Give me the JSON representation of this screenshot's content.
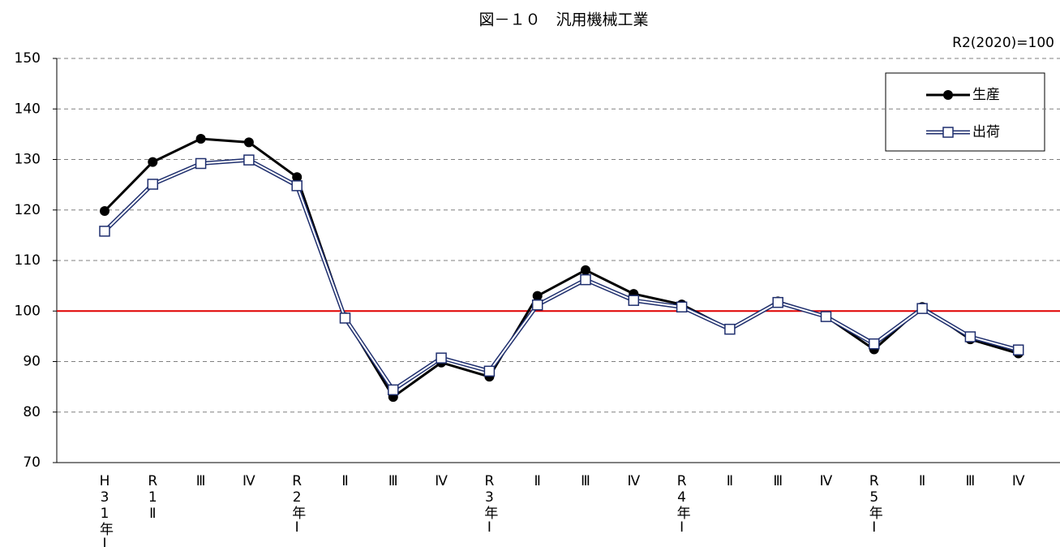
{
  "chart_data": {
    "type": "line",
    "title": "図－１０　汎用機械工業",
    "subtitle": "R2(2020)=100",
    "categories": [
      "H31年Ⅰ",
      "R1Ⅱ",
      "Ⅲ",
      "Ⅳ",
      "R2年Ⅰ",
      "Ⅱ",
      "Ⅲ",
      "Ⅳ",
      "R3年Ⅰ",
      "Ⅱ",
      "Ⅲ",
      "Ⅳ",
      "R4年Ⅰ",
      "Ⅱ",
      "Ⅲ",
      "Ⅳ",
      "R5年Ⅰ",
      "Ⅱ",
      "Ⅲ",
      "Ⅳ"
    ],
    "series": [
      {
        "name": "生産",
        "color": "#000000",
        "values": [
          119.8,
          129.5,
          134.1,
          133.4,
          126.5,
          98.8,
          83.0,
          89.8,
          87.0,
          103.0,
          108.1,
          103.4,
          101.3,
          96.4,
          101.9,
          98.9,
          92.4,
          100.8,
          94.4,
          91.6
        ]
      },
      {
        "name": "出荷",
        "color": "#1f2f6e",
        "values": [
          115.8,
          125.1,
          129.2,
          129.9,
          124.8,
          98.6,
          84.4,
          90.7,
          88.1,
          101.2,
          106.2,
          102.1,
          100.8,
          96.4,
          101.7,
          98.9,
          93.5,
          100.5,
          94.9,
          92.3
        ]
      }
    ],
    "ylim": [
      70,
      150
    ],
    "yticks": [
      70,
      80,
      90,
      100,
      110,
      120,
      130,
      140,
      150
    ],
    "grid": true,
    "reference_line": {
      "value": 100,
      "color": "#e00000"
    },
    "legend": "top-right"
  }
}
